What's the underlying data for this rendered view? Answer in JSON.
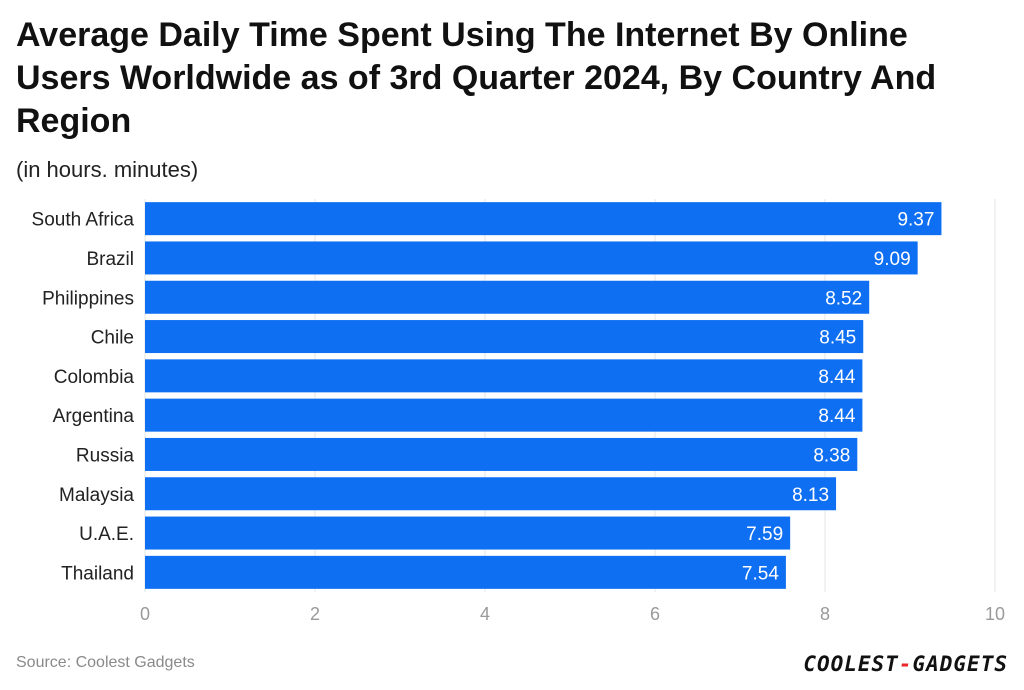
{
  "chart_data": {
    "type": "bar",
    "orientation": "horizontal",
    "title": "Average Daily Time Spent Using The Internet By Online Users Worldwide as of 3rd Quarter 2024, By Country And Region",
    "subtitle": "(in hours. minutes)",
    "categories": [
      "South Africa",
      "Brazil",
      "Philippines",
      "Chile",
      "Colombia",
      "Argentina",
      "Russia",
      "Malaysia",
      "U.A.E.",
      "Thailand"
    ],
    "values": [
      9.37,
      9.09,
      8.52,
      8.45,
      8.44,
      8.44,
      8.38,
      8.13,
      7.59,
      7.54
    ],
    "value_labels": [
      "9.37",
      "9.09",
      "8.52",
      "8.45",
      "8.44",
      "8.44",
      "8.38",
      "8.13",
      "7.59",
      "7.54"
    ],
    "xlim": [
      0,
      10
    ],
    "xticks": [
      "0",
      "2",
      "4",
      "6",
      "8",
      "10"
    ],
    "grid": true,
    "bar_color": "#0f6ff2"
  },
  "footer": {
    "source": "Source: Coolest Gadgets",
    "logo_part1": "COOLEST",
    "logo_dash": "-",
    "logo_part2": "GADGETS"
  }
}
